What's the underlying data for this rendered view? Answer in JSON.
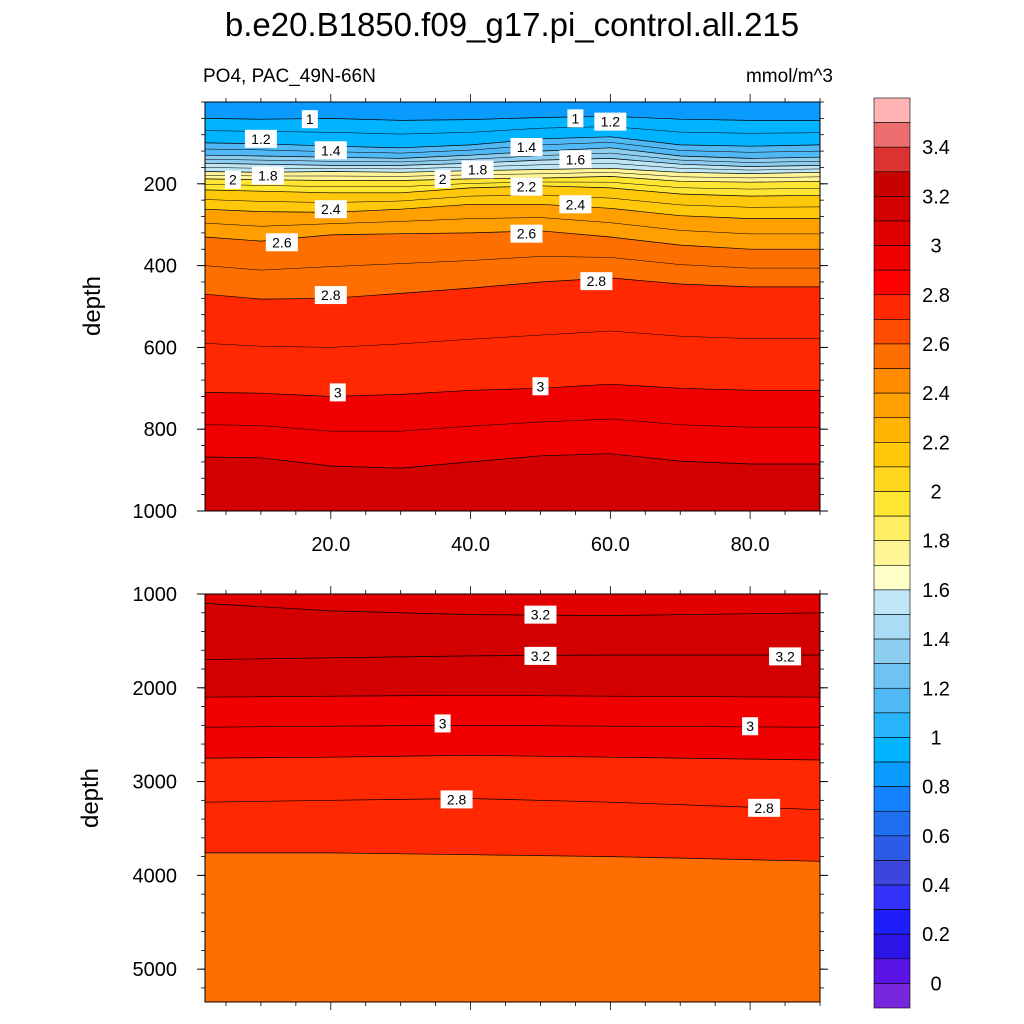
{
  "title": "b.e20.B1850.f09_g17.pi_control.all.215",
  "subtitle_left": "PO4, PAC_49N-66N",
  "subtitle_right": "mmol/m^3",
  "chart_data": [
    {
      "type": "heatmap",
      "panel": "upper",
      "title": "PO4, PAC_49N-66N",
      "xlabel": "",
      "ylabel": "depth",
      "units": "mmol/m^3",
      "xlim": [
        2,
        90
      ],
      "ylim": [
        1000,
        0
      ],
      "x_ticks": [
        20,
        40,
        60,
        80
      ],
      "x_tick_labels": [
        "20.0",
        "40.0",
        "60.0",
        "80.0"
      ],
      "y_ticks": [
        200,
        400,
        600,
        800,
        1000
      ],
      "y_tick_labels": [
        "200",
        "400",
        "600",
        "800",
        "1000"
      ],
      "x": [
        2,
        10,
        20,
        30,
        40,
        50,
        60,
        70,
        80,
        90
      ],
      "contour_depths": [
        {
          "level": 1.0,
          "depth": [
            40,
            42,
            40,
            45,
            43,
            38,
            35,
            42,
            45,
            45
          ]
        },
        {
          "level": 1.2,
          "depth": [
            100,
            102,
            108,
            112,
            105,
            90,
            85,
            105,
            108,
            105
          ]
        },
        {
          "level": 1.4,
          "depth": [
            130,
            132,
            135,
            138,
            130,
            120,
            112,
            132,
            138,
            135
          ]
        },
        {
          "level": 1.6,
          "depth": [
            150,
            152,
            155,
            155,
            150,
            142,
            138,
            152,
            158,
            155
          ]
        },
        {
          "level": 1.8,
          "depth": [
            170,
            172,
            170,
            172,
            168,
            165,
            162,
            172,
            175,
            172
          ]
        },
        {
          "level": 2.0,
          "depth": [
            188,
            190,
            192,
            192,
            188,
            186,
            182,
            194,
            196,
            194
          ]
        },
        {
          "level": 2.2,
          "depth": [
            215,
            218,
            222,
            222,
            210,
            205,
            210,
            225,
            230,
            228
          ]
        },
        {
          "level": 2.4,
          "depth": [
            262,
            268,
            270,
            262,
            250,
            250,
            260,
            278,
            285,
            285
          ]
        },
        {
          "level": 2.6,
          "depth": [
            330,
            340,
            325,
            322,
            320,
            315,
            330,
            350,
            360,
            360
          ]
        },
        {
          "level": 2.8,
          "depth": [
            470,
            482,
            480,
            468,
            455,
            440,
            430,
            445,
            452,
            452
          ]
        },
        {
          "level": 3.0,
          "depth": [
            710,
            712,
            720,
            715,
            705,
            700,
            690,
            700,
            705,
            705
          ]
        },
        {
          "level": 3.2,
          "depth": [
            868,
            870,
            890,
            895,
            880,
            865,
            860,
            878,
            885,
            885
          ]
        }
      ],
      "contour_labels": [
        {
          "text": "1",
          "x": 17,
          "depth": 42
        },
        {
          "text": "1",
          "x": 55,
          "depth": 40
        },
        {
          "text": "1.2",
          "x": 60,
          "depth": 48
        },
        {
          "text": "1.2",
          "x": 10,
          "depth": 90
        },
        {
          "text": "1.4",
          "x": 20,
          "depth": 118
        },
        {
          "text": "1.4",
          "x": 48,
          "depth": 110
        },
        {
          "text": "1.6",
          "x": 55,
          "depth": 140
        },
        {
          "text": "2",
          "x": 6,
          "depth": 190
        },
        {
          "text": "1.8",
          "x": 11,
          "depth": 180
        },
        {
          "text": "2",
          "x": 36,
          "depth": 188
        },
        {
          "text": "1.8",
          "x": 41,
          "depth": 165
        },
        {
          "text": "2.2",
          "x": 48,
          "depth": 207
        },
        {
          "text": "2.4",
          "x": 20,
          "depth": 262
        },
        {
          "text": "2.4",
          "x": 55,
          "depth": 250
        },
        {
          "text": "2.6",
          "x": 13,
          "depth": 343
        },
        {
          "text": "2.6",
          "x": 48,
          "depth": 322
        },
        {
          "text": "2.8",
          "x": 20,
          "depth": 472
        },
        {
          "text": "2.8",
          "x": 58,
          "depth": 438
        },
        {
          "text": "3",
          "x": 21,
          "depth": 710
        },
        {
          "text": "3",
          "x": 50,
          "depth": 695
        }
      ]
    },
    {
      "type": "heatmap",
      "panel": "lower",
      "xlabel": "",
      "ylabel": "depth",
      "units": "mmol/m^3",
      "xlim": [
        2,
        90
      ],
      "ylim": [
        5350,
        1000
      ],
      "y_ticks": [
        1000,
        2000,
        3000,
        4000,
        5000
      ],
      "y_tick_labels": [
        "1000",
        "2000",
        "3000",
        "4000",
        "5000"
      ],
      "x": [
        2,
        20,
        40,
        60,
        90
      ],
      "contour_depths": [
        {
          "level": 3.2,
          "depth": [
            1100,
            1180,
            1220,
            1230,
            1200
          ]
        },
        {
          "level": 3.2,
          "depth": [
            1700,
            1680,
            1660,
            1650,
            1650
          ]
        },
        {
          "level": 3.0,
          "depth": [
            2100,
            2090,
            2080,
            2090,
            2100
          ]
        },
        {
          "level": 3.0,
          "depth": [
            2420,
            2410,
            2400,
            2410,
            2420
          ]
        },
        {
          "level": 2.8,
          "depth": [
            2750,
            2740,
            2720,
            2740,
            2770
          ]
        },
        {
          "level": 2.8,
          "depth": [
            3220,
            3200,
            3180,
            3220,
            3300
          ]
        },
        {
          "level": 2.6,
          "depth": [
            3760,
            3760,
            3780,
            3800,
            3850
          ]
        }
      ],
      "contour_labels": [
        {
          "text": "3.2",
          "x": 50,
          "depth": 1220
        },
        {
          "text": "3.2",
          "x": 50,
          "depth": 1660
        },
        {
          "text": "3.2",
          "x": 85,
          "depth": 1665
        },
        {
          "text": "3",
          "x": 36,
          "depth": 2380
        },
        {
          "text": "3",
          "x": 80,
          "depth": 2410
        },
        {
          "text": "2.8",
          "x": 38,
          "depth": 3190
        },
        {
          "text": "2.8",
          "x": 82,
          "depth": 3280
        }
      ]
    }
  ],
  "colorbar": {
    "labels": [
      "3.4",
      "3.2",
      "3",
      "2.8",
      "2.6",
      "2.4",
      "2.2",
      "2",
      "1.8",
      "1.6",
      "1.4",
      "1.2",
      "1",
      "0.8",
      "0.6",
      "0.4",
      "0.2",
      "0"
    ],
    "colors": [
      "#ffb4b4",
      "#ec6e6e",
      "#dc3232",
      "#c80000",
      "#d20000",
      "#e10000",
      "#f00000",
      "#ff0000",
      "#ff2800",
      "#ff4b00",
      "#ff6e00",
      "#ff8c00",
      "#ffa000",
      "#ffb400",
      "#ffc80a",
      "#ffd71e",
      "#ffe632",
      "#ffee64",
      "#fff596",
      "#ffffc8",
      "#bee6f5",
      "#aadcf5",
      "#8ccdf0",
      "#6ec3f0",
      "#50b9f5",
      "#28b4fa",
      "#00b4ff",
      "#0a9bff",
      "#1482ff",
      "#1e6ef0",
      "#2d5ae6",
      "#3c46dc",
      "#3232fa",
      "#1e1efa",
      "#2d14e6",
      "#5a14e6",
      "#7828dc"
    ]
  }
}
